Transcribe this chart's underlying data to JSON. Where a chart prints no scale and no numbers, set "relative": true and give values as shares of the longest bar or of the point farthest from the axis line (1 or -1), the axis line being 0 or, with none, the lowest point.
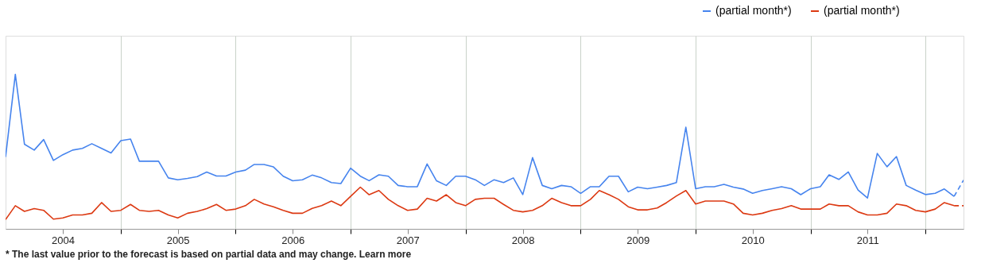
{
  "chart_data": {
    "type": "line",
    "relative": true,
    "x": [
      "2004-01",
      "2004-02",
      "2004-03",
      "2004-04",
      "2004-05",
      "2004-06",
      "2004-07",
      "2004-08",
      "2004-09",
      "2004-10",
      "2004-11",
      "2004-12",
      "2005-01",
      "2005-02",
      "2005-03",
      "2005-04",
      "2005-05",
      "2005-06",
      "2005-07",
      "2005-08",
      "2005-09",
      "2005-10",
      "2005-11",
      "2005-12",
      "2006-01",
      "2006-02",
      "2006-03",
      "2006-04",
      "2006-05",
      "2006-06",
      "2006-07",
      "2006-08",
      "2006-09",
      "2006-10",
      "2006-11",
      "2006-12",
      "2007-01",
      "2007-02",
      "2007-03",
      "2007-04",
      "2007-05",
      "2007-06",
      "2007-07",
      "2007-08",
      "2007-09",
      "2007-10",
      "2007-11",
      "2007-12",
      "2008-01",
      "2008-02",
      "2008-03",
      "2008-04",
      "2008-05",
      "2008-06",
      "2008-07",
      "2008-08",
      "2008-09",
      "2008-10",
      "2008-11",
      "2008-12",
      "2009-01",
      "2009-02",
      "2009-03",
      "2009-04",
      "2009-05",
      "2009-06",
      "2009-07",
      "2009-08",
      "2009-09",
      "2009-10",
      "2009-11",
      "2009-12",
      "2010-01",
      "2010-02",
      "2010-03",
      "2010-04",
      "2010-05",
      "2010-06",
      "2010-07",
      "2010-08",
      "2010-09",
      "2010-10",
      "2010-11",
      "2010-12",
      "2011-01",
      "2011-02",
      "2011-03",
      "2011-04",
      "2011-05",
      "2011-06",
      "2011-07",
      "2011-08",
      "2011-09",
      "2011-10",
      "2011-11",
      "2011-12",
      "2012-01",
      "2012-02",
      "2012-03",
      "2012-04"
    ],
    "series": [
      {
        "name": "(partial month*)",
        "color": "#4684ee",
        "values": [
          0.465,
          1.0,
          0.548,
          0.51,
          0.578,
          0.443,
          0.48,
          0.51,
          0.521,
          0.551,
          0.521,
          0.491,
          0.571,
          0.581,
          0.438,
          0.438,
          0.438,
          0.33,
          0.318,
          0.327,
          0.338,
          0.368,
          0.342,
          0.342,
          0.368,
          0.38,
          0.417,
          0.417,
          0.401,
          0.341,
          0.311,
          0.318,
          0.348,
          0.33,
          0.3,
          0.293,
          0.393,
          0.341,
          0.312,
          0.35,
          0.341,
          0.281,
          0.273,
          0.273,
          0.42,
          0.311,
          0.281,
          0.341,
          0.341,
          0.318,
          0.281,
          0.318,
          0.3,
          0.33,
          0.222,
          0.461,
          0.281,
          0.26,
          0.281,
          0.273,
          0.23,
          0.273,
          0.273,
          0.341,
          0.341,
          0.24,
          0.27,
          0.26,
          0.27,
          0.281,
          0.3,
          0.658,
          0.26,
          0.273,
          0.273,
          0.288,
          0.27,
          0.258,
          0.23,
          0.248,
          0.26,
          0.273,
          0.26,
          0.221,
          0.26,
          0.273,
          0.35,
          0.32,
          0.368,
          0.251,
          0.2,
          0.488,
          0.402,
          0.468,
          0.281,
          0.251,
          0.222,
          0.23,
          0.258,
          0.21
        ]
      },
      {
        "name": "(partial month*)",
        "color": "#dc3912",
        "values": [
          0.06,
          0.15,
          0.113,
          0.131,
          0.12,
          0.063,
          0.071,
          0.09,
          0.09,
          0.101,
          0.17,
          0.113,
          0.12,
          0.158,
          0.12,
          0.113,
          0.12,
          0.09,
          0.071,
          0.101,
          0.113,
          0.131,
          0.158,
          0.12,
          0.128,
          0.15,
          0.191,
          0.161,
          0.143,
          0.12,
          0.101,
          0.101,
          0.132,
          0.15,
          0.18,
          0.15,
          0.21,
          0.27,
          0.221,
          0.248,
          0.191,
          0.15,
          0.12,
          0.128,
          0.198,
          0.18,
          0.221,
          0.17,
          0.15,
          0.191,
          0.198,
          0.198,
          0.158,
          0.12,
          0.11,
          0.12,
          0.15,
          0.198,
          0.17,
          0.15,
          0.15,
          0.191,
          0.248,
          0.221,
          0.191,
          0.143,
          0.123,
          0.123,
          0.135,
          0.17,
          0.213,
          0.248,
          0.161,
          0.18,
          0.18,
          0.18,
          0.161,
          0.101,
          0.09,
          0.101,
          0.12,
          0.131,
          0.15,
          0.128,
          0.128,
          0.128,
          0.161,
          0.15,
          0.15,
          0.11,
          0.09,
          0.09,
          0.101,
          0.161,
          0.15,
          0.12,
          0.11,
          0.128,
          0.17,
          0.15
        ]
      },
      {
        "color": "#4684ee",
        "line_style": "dashed",
        "x": [
          "2012-04",
          "2012-05"
        ],
        "values": [
          0.21,
          0.315
        ]
      },
      {
        "color": "#dc3912",
        "line_style": "dashed",
        "x": [
          "2012-04",
          "2012-05"
        ],
        "values": [
          0.15,
          0.15
        ]
      }
    ],
    "xlim": [
      "2004-01",
      "2012-05"
    ],
    "xticks": [
      {
        "value": "2004-07",
        "label": "2004"
      },
      {
        "value": "2005",
        "label": null
      },
      {
        "value": "2005-07",
        "label": "2005"
      },
      {
        "value": "2006",
        "label": null
      },
      {
        "value": "2006-07",
        "label": "2006"
      },
      {
        "value": "2007",
        "label": null
      },
      {
        "value": "2007-07",
        "label": "2007"
      },
      {
        "value": "2008",
        "label": null
      },
      {
        "value": "2008-07",
        "label": "2008"
      },
      {
        "value": "2009",
        "label": null
      },
      {
        "value": "2009-07",
        "label": "2009"
      },
      {
        "value": "2010",
        "label": null
      },
      {
        "value": "2010-07",
        "label": "2010"
      },
      {
        "value": "2011",
        "label": null
      },
      {
        "value": "2011-07",
        "label": "2011"
      },
      {
        "value": "2012",
        "label": null
      }
    ],
    "grid": "x",
    "legend": "top right",
    "line_style": "solid",
    "annotations": [
      "* The last value prior to the forecast is based on partial data and may change. Learn more"
    ]
  }
}
